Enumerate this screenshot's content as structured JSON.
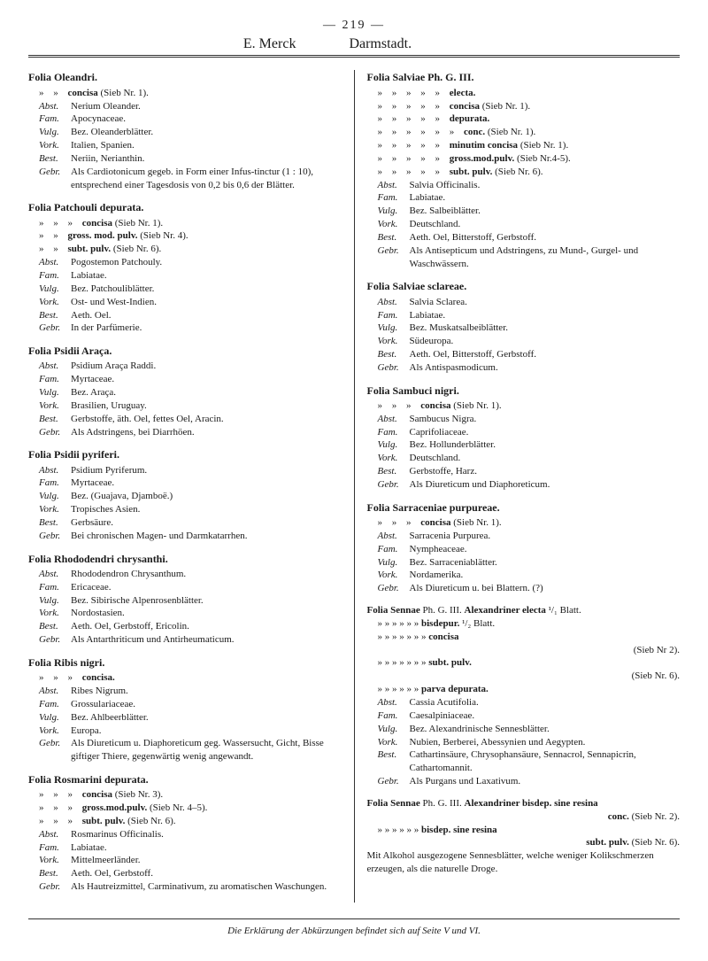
{
  "header": {
    "pageNumber": "— 219 —",
    "left": "E. Merck",
    "right": "Darmstadt."
  },
  "leftColumn": [
    {
      "title": "Folia Oleandri.",
      "sublines": [
        {
          "quots": "»      »",
          "bold": "concisa",
          "rest": "(Sieb Nr. 1)."
        }
      ],
      "fields": [
        {
          "label": "Abst.",
          "value": "Nerium Oleander."
        },
        {
          "label": "Fam.",
          "value": "Apocynaceae."
        },
        {
          "label": "Vulg.",
          "value": "Bez. Oleanderblätter."
        },
        {
          "label": "Vork.",
          "value": "Italien, Spanien."
        },
        {
          "label": "Best.",
          "value": "Neriin, Nerianthin."
        },
        {
          "label": "Gebr.",
          "value": "Als Cardiotonicum gegeb. in Form einer Infus-tinctur (1 : 10), entsprechend einer Tagesdosis von 0,2 bis 0,6 der Blätter."
        }
      ]
    },
    {
      "title": "Folia Patchouli depurata.",
      "sublines": [
        {
          "quots": "»      »              »",
          "bold": "concisa",
          "rest": "(Sieb Nr. 1)."
        },
        {
          "quots": "»      »",
          "bold": "gross. mod. pulv.",
          "rest": "(Sieb Nr. 4)."
        },
        {
          "quots": "»      »",
          "bold": "subt. pulv.",
          "rest": "(Sieb Nr. 6)."
        }
      ],
      "fields": [
        {
          "label": "Abst.",
          "value": "Pogostemon Patchouly."
        },
        {
          "label": "Fam.",
          "value": "Labiatae."
        },
        {
          "label": "Vulg.",
          "value": "Bez. Patchouliblätter."
        },
        {
          "label": "Vork.",
          "value": "Ost- und West-Indien."
        },
        {
          "label": "Best.",
          "value": "Aeth. Oel."
        },
        {
          "label": "Gebr.",
          "value": "In der Parfümerie."
        }
      ]
    },
    {
      "title": "Folia Psidii Araça.",
      "fields": [
        {
          "label": "Abst.",
          "value": "Psidium Araça Raddi."
        },
        {
          "label": "Fam.",
          "value": "Myrtaceae."
        },
        {
          "label": "Vulg.",
          "value": "Bez. Araça."
        },
        {
          "label": "Vork.",
          "value": "Brasilien, Uruguay."
        },
        {
          "label": "Best.",
          "value": "Gerbstoffe, äth. Oel, fettes Oel, Aracin."
        },
        {
          "label": "Gebr.",
          "value": "Als Adstringens, bei Diarrhöen."
        }
      ]
    },
    {
      "title": "Folia Psidii pyriferi.",
      "fields": [
        {
          "label": "Abst.",
          "value": "Psidium Pyriferum."
        },
        {
          "label": "Fam.",
          "value": "Myrtaceae."
        },
        {
          "label": "Vulg.",
          "value": "Bez. (Guajava, Djamboë.)"
        },
        {
          "label": "Vork.",
          "value": "Tropisches Asien."
        },
        {
          "label": "Best.",
          "value": "Gerbsäure."
        },
        {
          "label": "Gebr.",
          "value": "Bei chronischen Magen- und Darmkatarrhen."
        }
      ]
    },
    {
      "title": "Folia Rhododendri chrysanthi.",
      "fields": [
        {
          "label": "Abst.",
          "value": "Rhododendron Chrysanthum."
        },
        {
          "label": "Fam.",
          "value": "Ericaceae."
        },
        {
          "label": "Vulg.",
          "value": "Bez. Sibirische Alpenrosenblätter."
        },
        {
          "label": "Vork.",
          "value": "Nordostasien."
        },
        {
          "label": "Best.",
          "value": "Aeth. Oel, Gerbstoff, Ericolin."
        },
        {
          "label": "Gebr.",
          "value": "Als Antarthriticum und Antirheumaticum."
        }
      ]
    },
    {
      "title": "Folia Ribis nigri.",
      "sublines": [
        {
          "quots": "»      »      »",
          "bold": "concisa.",
          "rest": ""
        }
      ],
      "fields": [
        {
          "label": "Abst.",
          "value": "Ribes Nigrum."
        },
        {
          "label": "Fam.",
          "value": "Grossulariaceae."
        },
        {
          "label": "Vulg.",
          "value": "Bez. Ahlbeerblätter."
        },
        {
          "label": "Vork.",
          "value": "Europa."
        },
        {
          "label": "Gebr.",
          "value": "Als Diureticum u. Diaphoreticum geg. Wassersucht, Gicht, Bisse giftiger Thiere, gegenwärtig wenig angewandt."
        }
      ]
    },
    {
      "title": "Folia Rosmarini depurata.",
      "sublines": [
        {
          "quots": "»      »              »",
          "bold": "concisa",
          "rest": "(Sieb Nr. 3)."
        },
        {
          "quots": "»      »              »",
          "bold": "gross.mod.pulv.",
          "rest": "(Sieb Nr. 4–5)."
        },
        {
          "quots": "»      »              »",
          "bold": "subt. pulv.",
          "rest": "(Sieb Nr. 6)."
        }
      ],
      "fields": [
        {
          "label": "Abst.",
          "value": "Rosmarinus Officinalis."
        },
        {
          "label": "Fam.",
          "value": "Labiatae."
        },
        {
          "label": "Vork.",
          "value": "Mittelmeerländer."
        },
        {
          "label": "Best.",
          "value": "Aeth. Oel, Gerbstoff."
        },
        {
          "label": "Gebr.",
          "value": "Als Hautreizmittel, Carminativum, zu aromatischen Waschungen."
        }
      ]
    }
  ],
  "rightColumn": [
    {
      "title": "Folia Salviae Ph. G. III.",
      "sublines": [
        {
          "quots": "»      »      »   »   »",
          "bold": "electa.",
          "rest": ""
        },
        {
          "quots": "»      »      »   »      »",
          "bold": "concisa",
          "rest": "(Sieb Nr. 1)."
        },
        {
          "quots": "»      »      »   »   »",
          "bold": "depurata.",
          "rest": ""
        },
        {
          "quots": "»      »      »   »   »      »",
          "bold": "conc.",
          "rest": "(Sieb Nr. 1)."
        },
        {
          "quots": "»      »      »   »   »",
          "bold": "minutim concisa",
          "rest": "(Sieb Nr. 1)."
        },
        {
          "quots": "»      »      »   »   »",
          "bold": "gross.mod.pulv.",
          "rest": "(Sieb Nr.4-5)."
        },
        {
          "quots": "»      »      »   »   »",
          "bold": "subt. pulv.",
          "rest": "(Sieb Nr. 6)."
        }
      ],
      "fields": [
        {
          "label": "Abst.",
          "value": "Salvia Officinalis."
        },
        {
          "label": "Fam.",
          "value": "Labiatae."
        },
        {
          "label": "Vulg.",
          "value": "Bez. Salbeiblätter."
        },
        {
          "label": "Vork.",
          "value": "Deutschland."
        },
        {
          "label": "Best.",
          "value": "Aeth. Oel, Bitterstoff, Gerbstoff."
        },
        {
          "label": "Gebr.",
          "value": "Als Antisepticum und Adstringens, zu Mund-, Gurgel- und Waschwässern."
        }
      ]
    },
    {
      "title": "Folia Salviae sclareae.",
      "fields": [
        {
          "label": "Abst.",
          "value": "Salvia Sclarea."
        },
        {
          "label": "Fam.",
          "value": "Labiatae."
        },
        {
          "label": "Vulg.",
          "value": "Bez. Muskatsalbeiblätter."
        },
        {
          "label": "Vork.",
          "value": "Südeuropa."
        },
        {
          "label": "Best.",
          "value": "Aeth. Oel, Bitterstoff, Gerbstoff."
        },
        {
          "label": "Gebr.",
          "value": "Als Antispasmodicum."
        }
      ]
    },
    {
      "title": "Folia Sambuci nigri.",
      "sublines": [
        {
          "quots": "»      »           »",
          "bold": "concisa",
          "rest": "(Sieb Nr. 1)."
        }
      ],
      "fields": [
        {
          "label": "Abst.",
          "value": "Sambucus Nigra."
        },
        {
          "label": "Fam.",
          "value": "Caprifoliaceae."
        },
        {
          "label": "Vulg.",
          "value": "Bez. Hollunderblätter."
        },
        {
          "label": "Vork.",
          "value": "Deutschland."
        },
        {
          "label": "Best.",
          "value": "Gerbstoffe, Harz."
        },
        {
          "label": "Gebr.",
          "value": "Als Diureticum und Diaphoreticum."
        }
      ]
    },
    {
      "title": "Folia Sarraceniae purpureae.",
      "sublines": [
        {
          "quots": "»         »               »",
          "bold": "concisa",
          "rest": "(Sieb Nr. 1)."
        }
      ],
      "fields": [
        {
          "label": "Abst.",
          "value": "Sarracenia Purpurea."
        },
        {
          "label": "Fam.",
          "value": "Nympheaceae."
        },
        {
          "label": "Vulg.",
          "value": "Bez. Sarraceniablätter."
        },
        {
          "label": "Vork.",
          "value": "Nordamerika."
        },
        {
          "label": "Gebr.",
          "value": "Als Diureticum u. bei Blattern. (?)"
        }
      ]
    }
  ],
  "sennae": {
    "titleLine": {
      "prefix": "Folia Sennae",
      "mid": " Ph. G. III. ",
      "boldTail": "Alexandriner electa",
      "tail": " ¹/₁ Blatt."
    },
    "lines": [
      {
        "quots": "»      »      »   »   »           »",
        "bold": "bisdepur.",
        "rest": "¹/₂ Blatt."
      },
      {
        "quots": "»      »      »   »   »           »              »",
        "bold": "concisa",
        "rest": ""
      },
      {
        "right": "(Sieb Nr 2)."
      },
      {
        "quots": "»      »      »   »   »           »              »",
        "bold": "subt. pulv.",
        "rest": ""
      },
      {
        "right": "(Sieb Nr. 6)."
      },
      {
        "quots": "»      »      »   »   »           »",
        "bold": "parva depurata.",
        "rest": ""
      }
    ],
    "fields": [
      {
        "label": "Abst.",
        "value": "Cassia Acutifolia."
      },
      {
        "label": "Fam.",
        "value": "Caesalpiniaceae."
      },
      {
        "label": "Vulg.",
        "value": "Bez. Alexandrinische Sennesblätter."
      },
      {
        "label": "Vork.",
        "value": "Nubien, Berberei, Abessynien und Aegypten."
      },
      {
        "label": "Best.",
        "value": "Cathartinsäure, Chrysophansäure, Sennacrol, Sennapicrin, Cathartomannit."
      },
      {
        "label": "Gebr.",
        "value": "Als Purgans und Laxativum."
      }
    ]
  },
  "sennae2": {
    "titleLine": {
      "prefix": "Folia Sennae",
      "mid": " Ph. G. III. ",
      "boldTail": "Alexandriner bisdep. sine resina"
    },
    "lines": [
      {
        "rightBold": "conc.",
        "rest": " (Sieb Nr. 2)."
      },
      {
        "quots": "»      »      »   »   »           »",
        "bold": "bisdep. sine resina",
        "rest": ""
      },
      {
        "rightBold": "subt. pulv.",
        "rest": " (Sieb Nr. 6)."
      }
    ],
    "body": "Mit Alkohol ausgezogene Sennesblätter, welche weniger Kolikschmerzen erzeugen, als die naturelle Droge."
  },
  "footer": "Die Erklärung der Abkürzungen befindet sich auf Seite V und VI."
}
